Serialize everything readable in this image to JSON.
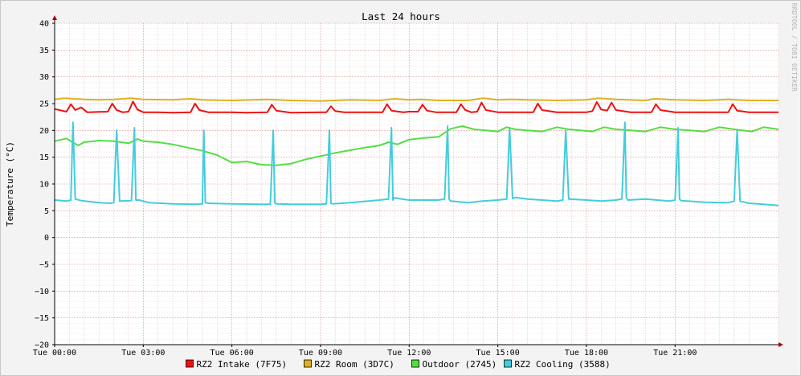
{
  "chart_data": {
    "type": "line",
    "title": "Last 24 hours",
    "ylabel": "Temperature (°C)",
    "xlabel": "",
    "watermark": "RRDTOOL / TOBI OETIKER",
    "ylim": [
      -20,
      40
    ],
    "y_ticks": [
      40,
      35,
      30,
      25,
      20,
      15,
      10,
      5,
      0,
      -5,
      -10,
      -15,
      -20
    ],
    "xlim": [
      0,
      24.5
    ],
    "x_ticks": [
      {
        "x": 0,
        "label": "Tue 00:00"
      },
      {
        "x": 3,
        "label": "Tue 03:00"
      },
      {
        "x": 6,
        "label": "Tue 06:00"
      },
      {
        "x": 9,
        "label": "Tue 09:00"
      },
      {
        "x": 12,
        "label": "Tue 12:00"
      },
      {
        "x": 15,
        "label": "Tue 15:00"
      },
      {
        "x": 18,
        "label": "Tue 18:00"
      },
      {
        "x": 21,
        "label": "Tue 21:00"
      }
    ],
    "grid": true,
    "legend_position": "bottom",
    "series": [
      {
        "name": "RZ2 Intake (7F75)",
        "color": "#ee1111",
        "x": [
          0,
          0.4,
          0.55,
          0.7,
          0.9,
          1.1,
          1.8,
          1.95,
          2.1,
          2.3,
          2.5,
          2.65,
          2.8,
          3.0,
          3.5,
          4.0,
          4.6,
          4.75,
          4.9,
          5.2,
          6.0,
          6.5,
          7.2,
          7.35,
          7.5,
          8.0,
          9.0,
          9.2,
          9.35,
          9.5,
          9.8,
          10.5,
          11.1,
          11.25,
          11.4,
          11.8,
          12.0,
          12.3,
          12.45,
          12.6,
          12.9,
          13.6,
          13.75,
          13.9,
          14.1,
          14.3,
          14.45,
          14.6,
          15.0,
          15.5,
          16.2,
          16.35,
          16.5,
          17.0,
          17.5,
          18.0,
          18.2,
          18.35,
          18.5,
          18.7,
          18.85,
          19.0,
          19.5,
          20.0,
          20.2,
          20.35,
          20.5,
          21.0,
          22.0,
          22.8,
          22.95,
          23.1,
          23.5,
          24.0,
          24.5
        ],
        "values": [
          24.0,
          23.5,
          24.9,
          23.8,
          24.3,
          23.4,
          23.5,
          25.0,
          23.8,
          23.4,
          23.5,
          25.4,
          23.9,
          23.4,
          23.4,
          23.3,
          23.4,
          25.0,
          23.8,
          23.4,
          23.4,
          23.3,
          23.4,
          24.8,
          23.7,
          23.3,
          23.4,
          23.4,
          24.5,
          23.6,
          23.4,
          23.4,
          23.4,
          24.9,
          23.7,
          23.4,
          23.5,
          23.5,
          24.8,
          23.7,
          23.4,
          23.4,
          24.9,
          23.8,
          23.4,
          23.5,
          25.2,
          23.8,
          23.4,
          23.4,
          23.4,
          25.0,
          23.8,
          23.4,
          23.4,
          23.4,
          23.6,
          25.3,
          23.9,
          23.7,
          25.2,
          23.8,
          23.4,
          23.4,
          23.4,
          24.9,
          23.8,
          23.4,
          23.4,
          23.4,
          24.9,
          23.7,
          23.4,
          23.4,
          23.4
        ]
      },
      {
        "name": "RZ2 Room (3D7C)",
        "color": "#e0b020",
        "x": [
          0,
          0.3,
          1.0,
          1.5,
          2.0,
          2.6,
          3.0,
          4.0,
          4.6,
          5.0,
          6.0,
          7.2,
          8.0,
          9.0,
          10.0,
          11.0,
          11.5,
          12.0,
          12.4,
          13.0,
          14.0,
          14.5,
          15.0,
          15.5,
          16.0,
          17.0,
          18.0,
          18.4,
          19.0,
          20.0,
          20.3,
          21.0,
          22.0,
          22.8,
          23.5,
          24.5
        ],
        "values": [
          25.8,
          26.0,
          25.8,
          25.7,
          25.8,
          26.0,
          25.8,
          25.7,
          25.9,
          25.7,
          25.6,
          25.8,
          25.6,
          25.5,
          25.7,
          25.6,
          25.9,
          25.7,
          25.8,
          25.6,
          25.6,
          26.0,
          25.7,
          25.8,
          25.7,
          25.6,
          25.7,
          26.0,
          25.8,
          25.6,
          25.9,
          25.7,
          25.6,
          25.8,
          25.6,
          25.6
        ]
      },
      {
        "name": "Outdoor (2745)",
        "color": "#55dd44",
        "x": [
          0,
          0.4,
          0.6,
          0.8,
          1.0,
          1.5,
          2.0,
          2.5,
          2.8,
          3.0,
          3.5,
          4.0,
          4.5,
          5.0,
          5.5,
          6.0,
          6.5,
          7.0,
          7.5,
          8.0,
          8.5,
          9.0,
          9.5,
          10.0,
          10.5,
          11.0,
          11.3,
          11.6,
          12.0,
          12.5,
          13.0,
          13.4,
          13.8,
          14.2,
          14.6,
          15.0,
          15.3,
          15.6,
          16.0,
          16.5,
          17.0,
          17.4,
          17.8,
          18.2,
          18.6,
          19.0,
          19.5,
          20.0,
          20.5,
          21.0,
          21.5,
          22.0,
          22.5,
          23.0,
          23.3,
          23.6,
          24.0,
          24.5
        ],
        "values": [
          18.0,
          18.5,
          17.8,
          17.2,
          17.8,
          18.1,
          18.0,
          17.6,
          18.4,
          18.0,
          17.8,
          17.4,
          16.8,
          16.2,
          15.4,
          14.0,
          14.2,
          13.6,
          13.5,
          13.8,
          14.6,
          15.2,
          15.8,
          16.3,
          16.8,
          17.2,
          17.8,
          17.4,
          18.3,
          18.6,
          18.8,
          20.3,
          20.8,
          20.2,
          20.0,
          19.8,
          20.6,
          20.2,
          20.0,
          19.8,
          20.6,
          20.2,
          20.0,
          19.8,
          20.6,
          20.2,
          20.0,
          19.8,
          20.6,
          20.2,
          20.0,
          19.8,
          20.6,
          20.2,
          20.0,
          19.8,
          20.6,
          20.2
        ]
      },
      {
        "name": "RZ2 Cooling (3588)",
        "color": "#44ccdd",
        "x": [
          0,
          0.4,
          0.55,
          0.62,
          0.7,
          0.9,
          1.5,
          1.9,
          2.0,
          2.1,
          2.2,
          2.6,
          2.7,
          2.75,
          2.85,
          3.2,
          4.0,
          4.8,
          5.0,
          5.05,
          5.1,
          5.2,
          6.0,
          7.0,
          7.3,
          7.4,
          7.45,
          7.5,
          8.0,
          9.0,
          9.2,
          9.3,
          9.35,
          9.4,
          10.0,
          11.0,
          11.3,
          11.4,
          11.45,
          11.5,
          12.0,
          13.0,
          13.2,
          13.3,
          13.35,
          13.4,
          14.0,
          14.5,
          15.0,
          15.3,
          15.4,
          15.5,
          15.6,
          16.0,
          16.5,
          17.0,
          17.2,
          17.3,
          17.4,
          18.0,
          18.5,
          19.0,
          19.2,
          19.3,
          19.35,
          19.4,
          20.0,
          20.8,
          21.0,
          21.1,
          21.15,
          21.2,
          22.0,
          22.8,
          23.0,
          23.1,
          23.2,
          23.5,
          24.0,
          24.5
        ],
        "values": [
          7.0,
          6.8,
          7.0,
          21.5,
          7.2,
          6.9,
          6.5,
          6.4,
          6.5,
          20.0,
          6.8,
          6.9,
          20.5,
          7.0,
          7.0,
          6.5,
          6.3,
          6.2,
          6.3,
          20.0,
          6.5,
          6.4,
          6.3,
          6.2,
          6.2,
          20.0,
          6.5,
          6.3,
          6.2,
          6.2,
          6.3,
          20.0,
          6.4,
          6.3,
          6.5,
          7.0,
          7.2,
          20.5,
          7.0,
          7.4,
          7.0,
          7.0,
          7.2,
          20.8,
          7.2,
          6.8,
          6.5,
          6.8,
          7.0,
          7.2,
          20.5,
          7.3,
          7.5,
          7.2,
          7.0,
          6.8,
          7.0,
          20.0,
          7.2,
          7.0,
          6.8,
          7.0,
          7.2,
          21.5,
          7.5,
          7.0,
          7.2,
          6.8,
          7.0,
          20.5,
          7.2,
          6.9,
          6.6,
          6.5,
          6.8,
          20.0,
          6.8,
          6.4,
          6.2,
          6.0
        ]
      }
    ]
  }
}
